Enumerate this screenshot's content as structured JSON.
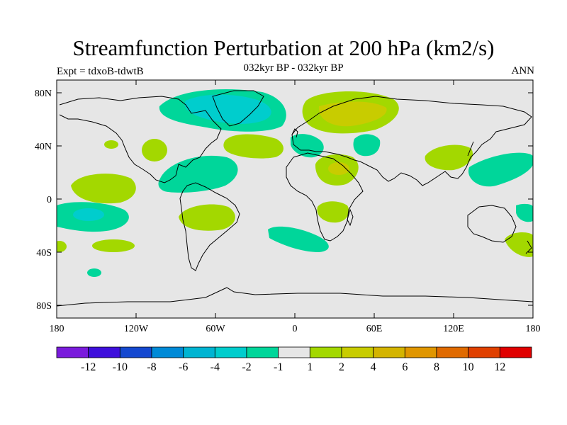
{
  "title": "Streamfunction Perturbation at 200 hPa (km2/s)",
  "experiment": "Expt = tdxoB-tdwtB",
  "period": "032kyr BP - 032kyr BP",
  "season": "ANN",
  "colors": {
    "ocean_land_bg": "#e6e6e6",
    "pos1": "#a3d800",
    "pos2": "#c8cc00",
    "neg1": "#00d69a",
    "neg2": "#00cdcd",
    "neg3": "#00b4d2"
  },
  "lat_labels": [
    "80N",
    "40N",
    "0",
    "40S",
    "80S"
  ],
  "lon_labels": [
    "180",
    "120W",
    "60W",
    "0",
    "60E",
    "120E",
    "180"
  ],
  "colorbar": {
    "colors": [
      "#7a1bdc",
      "#3e0fdc",
      "#1448d0",
      "#008ad7",
      "#00b4d2",
      "#00cdcd",
      "#00d69a",
      "#e6e6e6",
      "#a3d800",
      "#c8cc00",
      "#d4b400",
      "#e09600",
      "#e06a00",
      "#e04000",
      "#e00000"
    ],
    "labels": [
      "-12",
      "-10",
      "-8",
      "-6",
      "-4",
      "-2",
      "-1",
      "1",
      "2",
      "4",
      "6",
      "8",
      "10",
      "12"
    ]
  }
}
